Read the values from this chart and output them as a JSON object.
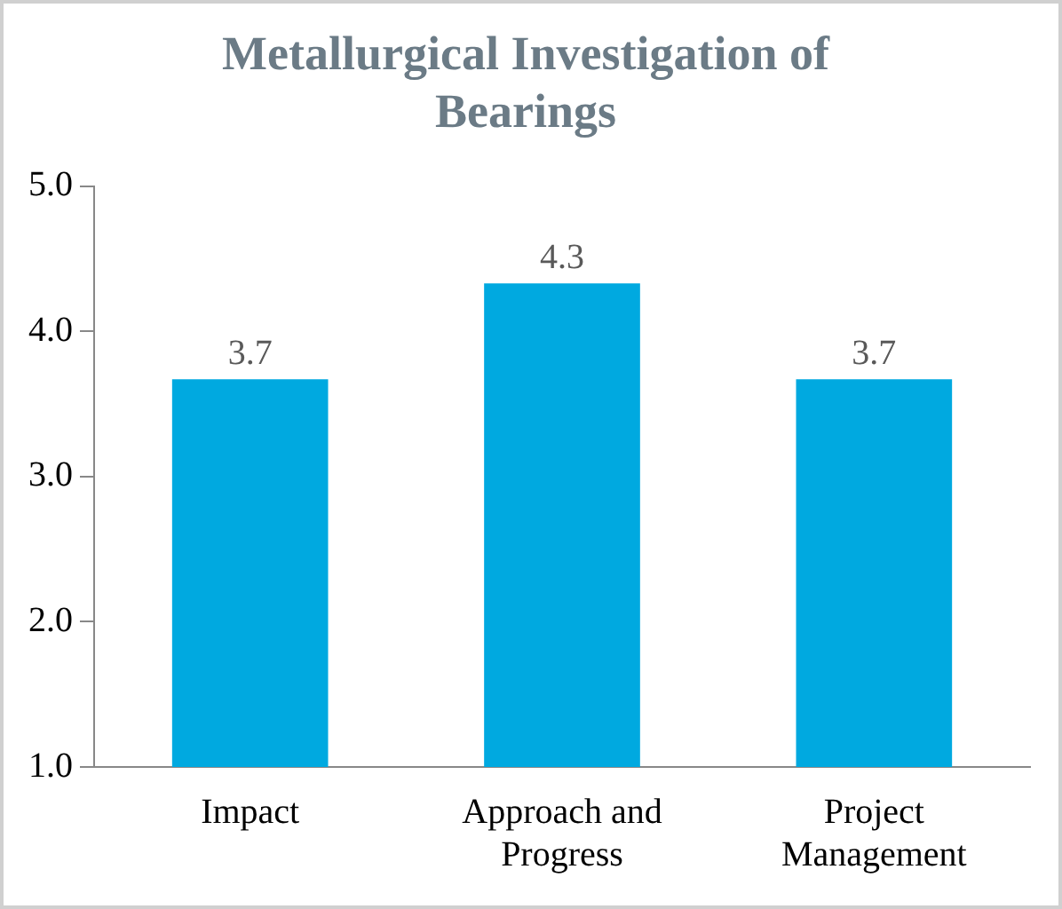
{
  "chart_data": {
    "type": "bar",
    "title": "Metallurgical Investigation of Bearings",
    "categories": [
      "Impact",
      "Approach and Progress",
      "Project Management"
    ],
    "values": [
      3.67,
      4.33,
      3.67
    ],
    "value_labels": [
      "3.7",
      "4.3",
      "3.7"
    ],
    "color": "#00a9e0",
    "ylim": [
      1,
      5
    ],
    "yticks": [
      {
        "value": 1,
        "label": "1.0"
      },
      {
        "value": 2,
        "label": "2.0"
      },
      {
        "value": 3,
        "label": "3.0"
      },
      {
        "value": 4,
        "label": "4.0"
      },
      {
        "value": 5,
        "label": "5.0"
      }
    ],
    "grid": false,
    "legend": false
  }
}
